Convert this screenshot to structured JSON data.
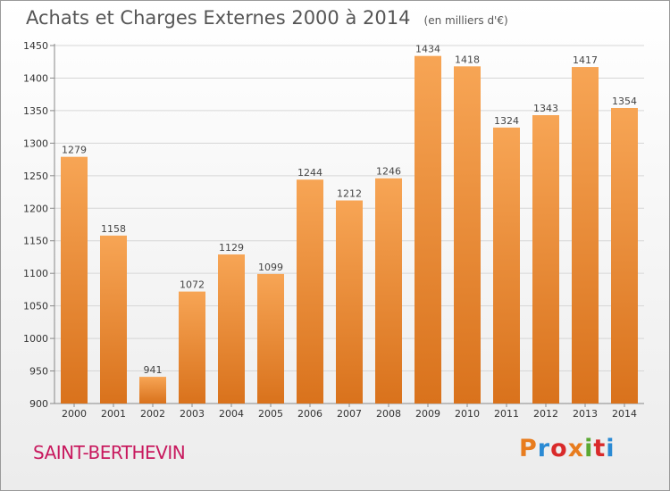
{
  "header": {
    "title": "Achats et Charges Externes 2000 à 2014",
    "unit": "(en milliers d'€)"
  },
  "footer": {
    "commune": "SAINT-BERTHEVIN",
    "brand": "Proxiti",
    "brand_colors": [
      "#e87c1e",
      "#2a8ad4",
      "#d92a2a",
      "#e87c1e",
      "#5aa832",
      "#d92a2a",
      "#2a8ad4"
    ]
  },
  "colors": {
    "bar_light": "#f7a555",
    "bar_dark": "#d9721c",
    "grid": "#d6d6d6"
  },
  "chart_data": {
    "type": "bar",
    "title": "Achats et Charges Externes 2000 à 2014",
    "categories": [
      "2000",
      "2001",
      "2002",
      "2003",
      "2004",
      "2005",
      "2006",
      "2007",
      "2008",
      "2009",
      "2010",
      "2011",
      "2012",
      "2013",
      "2014"
    ],
    "values": [
      1279,
      1158,
      941,
      1072,
      1129,
      1099,
      1244,
      1212,
      1246,
      1434,
      1418,
      1324,
      1343,
      1417,
      1354
    ],
    "ylim": [
      900,
      1450
    ],
    "yticks": [
      900,
      950,
      1000,
      1050,
      1100,
      1150,
      1200,
      1250,
      1300,
      1350,
      1400,
      1450
    ],
    "grid": true,
    "data_labels": true
  }
}
